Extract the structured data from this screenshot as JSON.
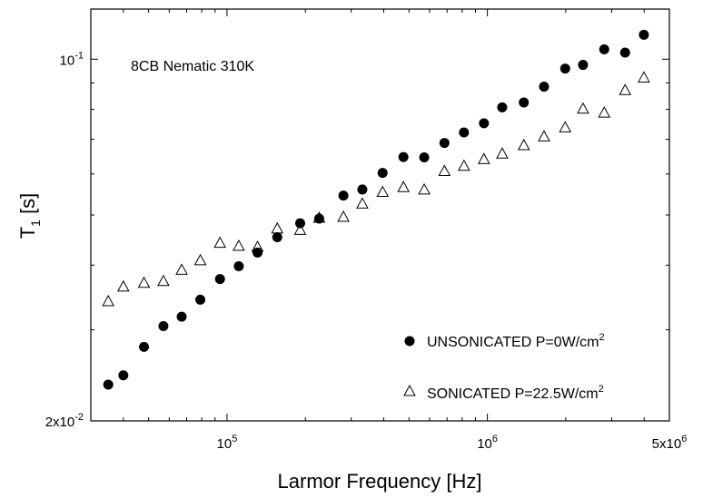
{
  "chart_data": {
    "type": "scatter",
    "title": "",
    "annotation": "8CB Nematic 310K",
    "xlabel": "Larmor Frequency [Hz]",
    "ylabel": {
      "main": "T",
      "sub": "1",
      "unit": " [s]"
    },
    "xscale": "log",
    "yscale": "log",
    "xlim": [
      30000,
      5000000
    ],
    "ylim": [
      0.02,
      0.125
    ],
    "x_ticks": [
      {
        "value": 100000,
        "base": "10",
        "exp": "5"
      },
      {
        "value": 1000000,
        "base": "10",
        "exp": "6"
      },
      {
        "value": 5000000,
        "base": "5x10",
        "exp": "6"
      }
    ],
    "y_ticks": [
      {
        "value": 0.02,
        "base": "2x10",
        "exp": "-2"
      },
      {
        "value": 0.1,
        "base": "10",
        "exp": "-1"
      }
    ],
    "legend_position": "bottom-right",
    "series": [
      {
        "name": "UNSONICATED P=0W/cm",
        "name_sup": "2",
        "marker": "filled-circle",
        "points": [
          [
            35000,
            0.0235
          ],
          [
            40000,
            0.0245
          ],
          [
            48000,
            0.0278
          ],
          [
            57000,
            0.0305
          ],
          [
            67000,
            0.0318
          ],
          [
            79000,
            0.0343
          ],
          [
            94000,
            0.0376
          ],
          [
            111000,
            0.0398
          ],
          [
            131000,
            0.0423
          ],
          [
            156000,
            0.0453
          ],
          [
            191000,
            0.0482
          ],
          [
            226000,
            0.0492
          ],
          [
            280000,
            0.0545
          ],
          [
            331000,
            0.056
          ],
          [
            396000,
            0.0603
          ],
          [
            476000,
            0.0647
          ],
          [
            572000,
            0.0646
          ],
          [
            684000,
            0.0689
          ],
          [
            813000,
            0.0722
          ],
          [
            970000,
            0.0752
          ],
          [
            1140000,
            0.0807
          ],
          [
            1380000,
            0.0825
          ],
          [
            1650000,
            0.0885
          ],
          [
            1990000,
            0.0959
          ],
          [
            2330000,
            0.0975
          ],
          [
            2810000,
            0.1045
          ],
          [
            3380000,
            0.103
          ],
          [
            3990000,
            0.1115
          ]
        ]
      },
      {
        "name": "SONICATED P=22.5W/cm",
        "name_sup": "2",
        "marker": "open-triangle",
        "points": [
          [
            35000,
            0.034
          ],
          [
            40000,
            0.0363
          ],
          [
            48000,
            0.0369
          ],
          [
            57000,
            0.0372
          ],
          [
            67000,
            0.0391
          ],
          [
            79000,
            0.0408
          ],
          [
            94000,
            0.0441
          ],
          [
            111000,
            0.0435
          ],
          [
            131000,
            0.0433
          ],
          [
            156000,
            0.047
          ],
          [
            191000,
            0.0467
          ],
          [
            226000,
            0.0493
          ],
          [
            280000,
            0.0495
          ],
          [
            331000,
            0.0525
          ],
          [
            396000,
            0.0553
          ],
          [
            476000,
            0.0565
          ],
          [
            572000,
            0.0559
          ],
          [
            684000,
            0.0607
          ],
          [
            813000,
            0.0621
          ],
          [
            970000,
            0.064
          ],
          [
            1140000,
            0.0656
          ],
          [
            1380000,
            0.0681
          ],
          [
            1650000,
            0.0708
          ],
          [
            1990000,
            0.0737
          ],
          [
            2330000,
            0.0801
          ],
          [
            2810000,
            0.0787
          ],
          [
            3380000,
            0.087
          ],
          [
            3990000,
            0.092
          ]
        ]
      }
    ]
  }
}
